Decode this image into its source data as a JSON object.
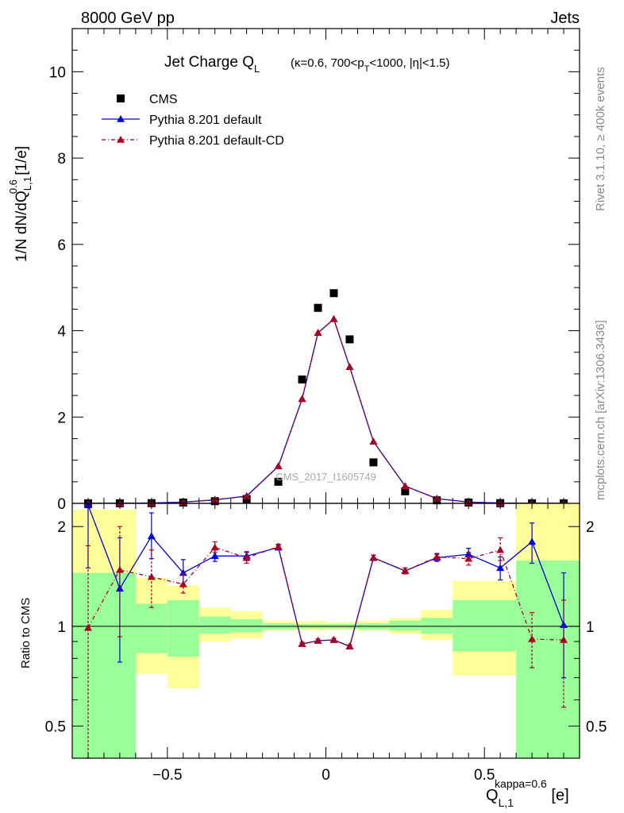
{
  "header": {
    "left": "8000 GeV pp",
    "right": "Jets"
  },
  "side_labels": {
    "rivet": "Rivet 3.1.10, ≥ 400k events",
    "mcplots": "mcplots.cern.ch [arXiv:1306.3436]"
  },
  "chart_data": [
    {
      "type": "scatter",
      "panel": "main",
      "title_main": "Jet Charge Q",
      "title_sub": "L",
      "title_cond": "(κ=0.6, 700<p",
      "title_cond_sub": "T",
      "title_cond_end": "<1000, |η|<1.5)",
      "ylabel": "1/N dN/dQ",
      "ylabel_sup": "0.6",
      "ylabel_sub": "L,1",
      "ylabel_unit": " [1/e]",
      "watermark": "CMS_2017_I1605749",
      "xlim": [
        -0.8,
        0.8
      ],
      "ylim": [
        0,
        11
      ],
      "yticks": [
        0,
        2,
        4,
        6,
        8,
        10
      ],
      "ytick_labels": [
        "0",
        "2",
        "4",
        "6",
        "8",
        "10"
      ],
      "legend_position": "top-left",
      "x": [
        -0.75,
        -0.65,
        -0.55,
        -0.45,
        -0.35,
        -0.25,
        -0.15,
        -0.075,
        -0.025,
        0.025,
        0.075,
        0.15,
        0.25,
        0.35,
        0.45,
        0.55,
        0.65,
        0.75
      ],
      "series": [
        {
          "name": "CMS",
          "color": "#000000",
          "marker": "square",
          "values": [
            0.001,
            0.002,
            0.005,
            0.02,
            0.05,
            0.1,
            0.5,
            2.87,
            4.53,
            4.87,
            3.8,
            0.95,
            0.28,
            0.07,
            0.02,
            0.005,
            0.002,
            0.001
          ]
        },
        {
          "name": "Pythia 8.201 default",
          "color": "#0000dd",
          "marker": "triangle",
          "line": "solid",
          "values": [
            0.002,
            0.003,
            0.009,
            0.03,
            0.08,
            0.17,
            0.86,
            2.42,
            3.95,
            4.27,
            3.16,
            1.43,
            0.4,
            0.11,
            0.03,
            0.008,
            0.004,
            0.001
          ]
        },
        {
          "name": "Pythia 8.201 default-CD",
          "color": "#aa0022",
          "marker": "triangle",
          "line": "dash-dot",
          "values": [
            0.001,
            0.003,
            0.007,
            0.026,
            0.085,
            0.16,
            0.86,
            2.42,
            3.95,
            4.27,
            3.16,
            1.43,
            0.4,
            0.11,
            0.03,
            0.008,
            0.002,
            0.001
          ]
        }
      ]
    },
    {
      "type": "scatter",
      "panel": "ratio",
      "ylabel": "Ratio to CMS",
      "xlabel_main": "Q",
      "xlabel_sup": "kappa=0.6",
      "xlabel_sub": "L,1",
      "xlabel_unit": " [e]",
      "log_scale_y": true,
      "ylim": [
        0.4,
        2.35
      ],
      "xlim": [
        -0.8,
        0.8
      ],
      "xticks": [
        -0.5,
        0,
        0.5
      ],
      "xtick_labels": [
        "−0.5",
        "0",
        "0.5"
      ],
      "yticks": [
        0.5,
        1,
        2
      ],
      "ytick_labels": [
        "0.5",
        "1",
        "2"
      ],
      "bins": [
        {
          "lo": -0.8,
          "hi": -0.6,
          "green": [
            0.4,
            1.45
          ],
          "yellow": [
            0.4,
            2.25
          ]
        },
        {
          "lo": -0.6,
          "hi": -0.5,
          "green": [
            0.83,
            1.17
          ],
          "yellow": [
            0.72,
            1.4
          ]
        },
        {
          "lo": -0.5,
          "hi": -0.4,
          "green": [
            0.81,
            1.2
          ],
          "yellow": [
            0.65,
            1.33
          ]
        },
        {
          "lo": -0.4,
          "hi": -0.3,
          "green": [
            0.95,
            1.07
          ],
          "yellow": [
            0.9,
            1.14
          ]
        },
        {
          "lo": -0.3,
          "hi": -0.2,
          "green": [
            0.96,
            1.05
          ],
          "yellow": [
            0.92,
            1.11
          ]
        },
        {
          "lo": -0.2,
          "hi": -0.1,
          "green": [
            0.98,
            1.02
          ],
          "yellow": [
            0.97,
            1.04
          ]
        },
        {
          "lo": -0.1,
          "hi": -0.05,
          "green": [
            0.985,
            1.015
          ],
          "yellow": [
            0.975,
            1.035
          ]
        },
        {
          "lo": -0.05,
          "hi": 0.0,
          "green": [
            0.985,
            1.015
          ],
          "yellow": [
            0.97,
            1.04
          ]
        },
        {
          "lo": 0.0,
          "hi": 0.05,
          "green": [
            0.985,
            1.015
          ],
          "yellow": [
            0.975,
            1.03
          ]
        },
        {
          "lo": 0.05,
          "hi": 0.1,
          "green": [
            0.985,
            1.015
          ],
          "yellow": [
            0.975,
            1.03
          ]
        },
        {
          "lo": 0.1,
          "hi": 0.2,
          "green": [
            0.98,
            1.02
          ],
          "yellow": [
            0.97,
            1.04
          ]
        },
        {
          "lo": 0.2,
          "hi": 0.3,
          "green": [
            0.97,
            1.04
          ],
          "yellow": [
            0.95,
            1.06
          ]
        },
        {
          "lo": 0.3,
          "hi": 0.4,
          "green": [
            0.95,
            1.06
          ],
          "yellow": [
            0.91,
            1.12
          ]
        },
        {
          "lo": 0.4,
          "hi": 0.6,
          "green": [
            0.84,
            1.2
          ],
          "yellow": [
            0.71,
            1.37
          ]
        },
        {
          "lo": 0.6,
          "hi": 0.8,
          "green": [
            0.4,
            1.58
          ],
          "yellow": [
            0.4,
            2.35
          ]
        }
      ],
      "series": [
        {
          "name": "Pythia 8.201 default",
          "color": "#0000dd",
          "line": "solid",
          "values": [
            2.32,
            1.3,
            1.87,
            1.45,
            1.63,
            1.63,
            1.73,
            0.885,
            0.905,
            0.91,
            0.87,
            1.61,
            1.47,
            1.61,
            1.65,
            1.5,
            1.8,
            1.01
          ],
          "err": [
            [
              1.5,
              2.35
            ],
            [
              0.78,
              1.85
            ],
            [
              1.6,
              2.2
            ],
            [
              1.33,
              1.59
            ],
            [
              1.57,
              1.7
            ],
            [
              1.58,
              1.68
            ],
            [
              1.7,
              1.76
            ],
            [
              0.875,
              0.895
            ],
            [
              0.895,
              0.915
            ],
            [
              0.9,
              0.92
            ],
            [
              0.86,
              0.88
            ],
            [
              1.58,
              1.64
            ],
            [
              1.44,
              1.5
            ],
            [
              1.57,
              1.65
            ],
            [
              1.58,
              1.72
            ],
            [
              1.38,
              1.62
            ],
            [
              1.55,
              2.05
            ],
            [
              0.7,
              1.45
            ]
          ]
        },
        {
          "name": "Pythia 8.201 default-CD",
          "color": "#aa0022",
          "line": "dash-dot",
          "values": [
            0.99,
            1.48,
            1.41,
            1.34,
            1.73,
            1.61,
            1.74,
            0.885,
            0.905,
            0.91,
            0.87,
            1.61,
            1.47,
            1.62,
            1.6,
            1.7,
            0.915,
            0.91
          ],
          "err": [
            [
              0.4,
              1.75
            ],
            [
              0.93,
              2.0
            ],
            [
              1.14,
              1.7
            ],
            [
              1.26,
              1.44
            ],
            [
              1.67,
              1.8
            ],
            [
              1.55,
              1.67
            ],
            [
              1.71,
              1.77
            ],
            [
              0.875,
              0.895
            ],
            [
              0.895,
              0.915
            ],
            [
              0.9,
              0.92
            ],
            [
              0.86,
              0.88
            ],
            [
              1.58,
              1.64
            ],
            [
              1.44,
              1.5
            ],
            [
              1.59,
              1.66
            ],
            [
              1.53,
              1.67
            ],
            [
              1.58,
              1.85
            ],
            [
              0.75,
              1.1
            ],
            [
              0.57,
              1.2
            ]
          ]
        }
      ]
    }
  ]
}
